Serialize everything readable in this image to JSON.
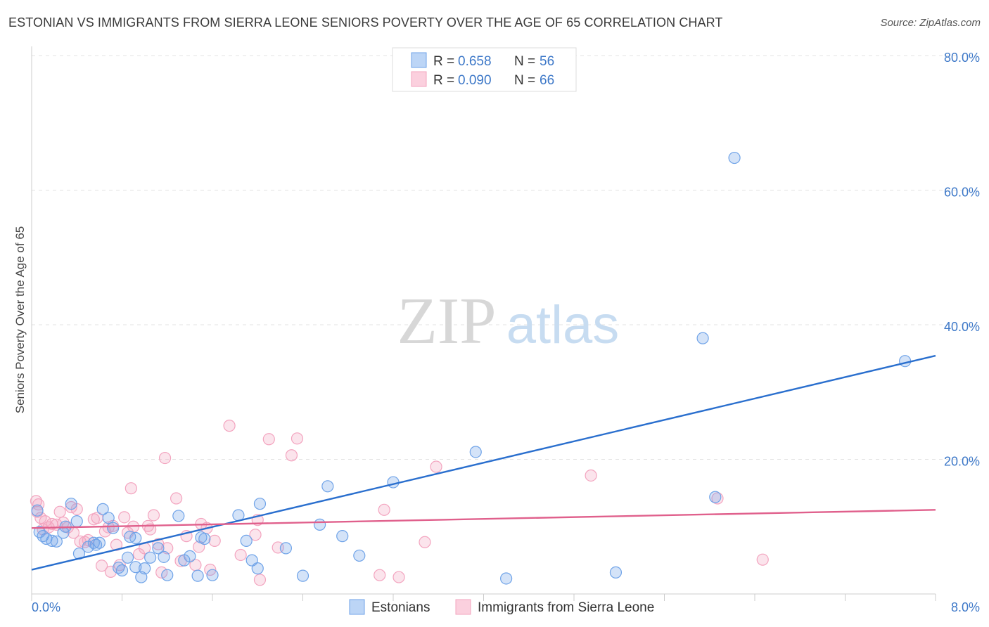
{
  "title": "ESTONIAN VS IMMIGRANTS FROM SIERRA LEONE SENIORS POVERTY OVER THE AGE OF 65 CORRELATION CHART",
  "source": "Source: ZipAtlas.com",
  "watermark": {
    "zip": "ZIP",
    "atlas": "atlas"
  },
  "chart_data": {
    "type": "scatter",
    "title": "ESTONIAN VS IMMIGRANTS FROM SIERRA LEONE SENIORS POVERTY OVER THE AGE OF 65 CORRELATION CHART",
    "ylabel": "Seniors Poverty Over the Age of 65",
    "xlabel": "",
    "xlim": [
      0,
      8
    ],
    "ylim": [
      0,
      80
    ],
    "x_tick_labels": [
      {
        "value": 0,
        "label": "0.0%"
      },
      {
        "value": 8,
        "label": "8.0%"
      }
    ],
    "y_tick_labels": [
      {
        "value": 20,
        "label": "20.0%"
      },
      {
        "value": 40,
        "label": "40.0%"
      },
      {
        "value": 60,
        "label": "60.0%"
      },
      {
        "value": 80,
        "label": "80.0%"
      }
    ],
    "grid": true,
    "legend_placement": "top-center",
    "series": [
      {
        "name": "Estonians",
        "color": "#6fa3e8",
        "line_color": "#2a6fce",
        "R": "0.658",
        "N": "56",
        "R_label": "R =",
        "N_label": "N =",
        "trend": {
          "x": [
            0,
            8
          ],
          "y": [
            3.6,
            35.4
          ]
        },
        "points": [
          [
            0.05,
            12.4
          ],
          [
            0.07,
            9.2
          ],
          [
            0.1,
            8.6
          ],
          [
            0.13,
            8.2
          ],
          [
            0.18,
            7.9
          ],
          [
            0.22,
            7.8
          ],
          [
            0.28,
            9.1
          ],
          [
            0.3,
            10.0
          ],
          [
            0.35,
            13.4
          ],
          [
            0.4,
            10.8
          ],
          [
            0.42,
            6.0
          ],
          [
            0.5,
            7.0
          ],
          [
            0.55,
            7.6
          ],
          [
            0.6,
            7.6
          ],
          [
            0.63,
            12.6
          ],
          [
            0.68,
            11.3
          ],
          [
            0.72,
            9.8
          ],
          [
            0.77,
            3.9
          ],
          [
            0.8,
            3.5
          ],
          [
            0.85,
            5.4
          ],
          [
            0.87,
            8.5
          ],
          [
            0.92,
            4.0
          ],
          [
            0.97,
            2.5
          ],
          [
            1.0,
            3.8
          ],
          [
            1.05,
            5.4
          ],
          [
            1.12,
            6.8
          ],
          [
            1.17,
            5.5
          ],
          [
            1.2,
            2.8
          ],
          [
            1.3,
            11.6
          ],
          [
            1.35,
            5.0
          ],
          [
            1.4,
            5.6
          ],
          [
            1.47,
            2.7
          ],
          [
            1.53,
            8.2
          ],
          [
            1.6,
            2.8
          ],
          [
            1.83,
            11.7
          ],
          [
            1.9,
            7.9
          ],
          [
            1.95,
            5.0
          ],
          [
            2.0,
            3.8
          ],
          [
            2.02,
            13.4
          ],
          [
            2.25,
            6.8
          ],
          [
            2.4,
            2.7
          ],
          [
            2.55,
            10.3
          ],
          [
            2.62,
            16.0
          ],
          [
            2.75,
            8.6
          ],
          [
            2.9,
            5.7
          ],
          [
            3.2,
            16.6
          ],
          [
            3.93,
            21.1
          ],
          [
            4.2,
            2.3
          ],
          [
            5.17,
            3.2
          ],
          [
            5.94,
            38.0
          ],
          [
            6.05,
            14.4
          ],
          [
            6.22,
            64.8
          ],
          [
            7.73,
            34.6
          ],
          [
            1.5,
            8.4
          ],
          [
            0.92,
            8.3
          ],
          [
            0.57,
            7.3
          ]
        ]
      },
      {
        "name": "Immigrants from Sierra Leone",
        "color": "#f3a4bf",
        "line_color": "#e0608c",
        "R": "0.090",
        "N": "66",
        "R_label": "R =",
        "N_label": "N =",
        "trend": {
          "x": [
            0,
            8
          ],
          "y": [
            9.8,
            12.5
          ]
        },
        "points": [
          [
            0.04,
            13.8
          ],
          [
            0.05,
            12.2
          ],
          [
            0.06,
            13.3
          ],
          [
            0.08,
            11.3
          ],
          [
            0.12,
            10.8
          ],
          [
            0.15,
            9.9
          ],
          [
            0.18,
            10.4
          ],
          [
            0.22,
            10.3
          ],
          [
            0.25,
            12.2
          ],
          [
            0.28,
            10.6
          ],
          [
            0.32,
            9.9
          ],
          [
            0.35,
            12.9
          ],
          [
            0.37,
            9.1
          ],
          [
            0.4,
            12.6
          ],
          [
            0.43,
            7.8
          ],
          [
            0.47,
            7.7
          ],
          [
            0.5,
            8.0
          ],
          [
            0.55,
            11.1
          ],
          [
            0.58,
            11.3
          ],
          [
            0.62,
            4.2
          ],
          [
            0.65,
            9.3
          ],
          [
            0.68,
            9.9
          ],
          [
            0.72,
            10.1
          ],
          [
            0.75,
            7.3
          ],
          [
            0.78,
            4.3
          ],
          [
            0.82,
            11.4
          ],
          [
            0.85,
            9.1
          ],
          [
            0.88,
            15.7
          ],
          [
            0.9,
            10.0
          ],
          [
            0.95,
            5.9
          ],
          [
            1.0,
            6.8
          ],
          [
            1.03,
            10.1
          ],
          [
            1.05,
            9.6
          ],
          [
            1.08,
            11.7
          ],
          [
            1.12,
            7.4
          ],
          [
            1.15,
            3.2
          ],
          [
            1.18,
            20.2
          ],
          [
            1.2,
            6.8
          ],
          [
            1.28,
            14.2
          ],
          [
            1.32,
            4.9
          ],
          [
            1.37,
            8.6
          ],
          [
            1.45,
            4.3
          ],
          [
            1.48,
            7.0
          ],
          [
            1.5,
            10.4
          ],
          [
            1.55,
            9.8
          ],
          [
            1.58,
            3.6
          ],
          [
            1.62,
            7.9
          ],
          [
            1.75,
            25.0
          ],
          [
            1.85,
            5.8
          ],
          [
            1.98,
            8.8
          ],
          [
            2.0,
            11.0
          ],
          [
            2.02,
            2.1
          ],
          [
            2.1,
            23.0
          ],
          [
            2.18,
            6.9
          ],
          [
            2.3,
            20.6
          ],
          [
            2.35,
            23.1
          ],
          [
            3.08,
            2.8
          ],
          [
            3.12,
            12.5
          ],
          [
            3.25,
            2.5
          ],
          [
            3.48,
            7.7
          ],
          [
            3.58,
            18.9
          ],
          [
            4.95,
            17.6
          ],
          [
            6.07,
            14.2
          ],
          [
            6.47,
            5.1
          ],
          [
            0.1,
            9.6
          ],
          [
            0.7,
            3.3
          ]
        ]
      }
    ]
  }
}
